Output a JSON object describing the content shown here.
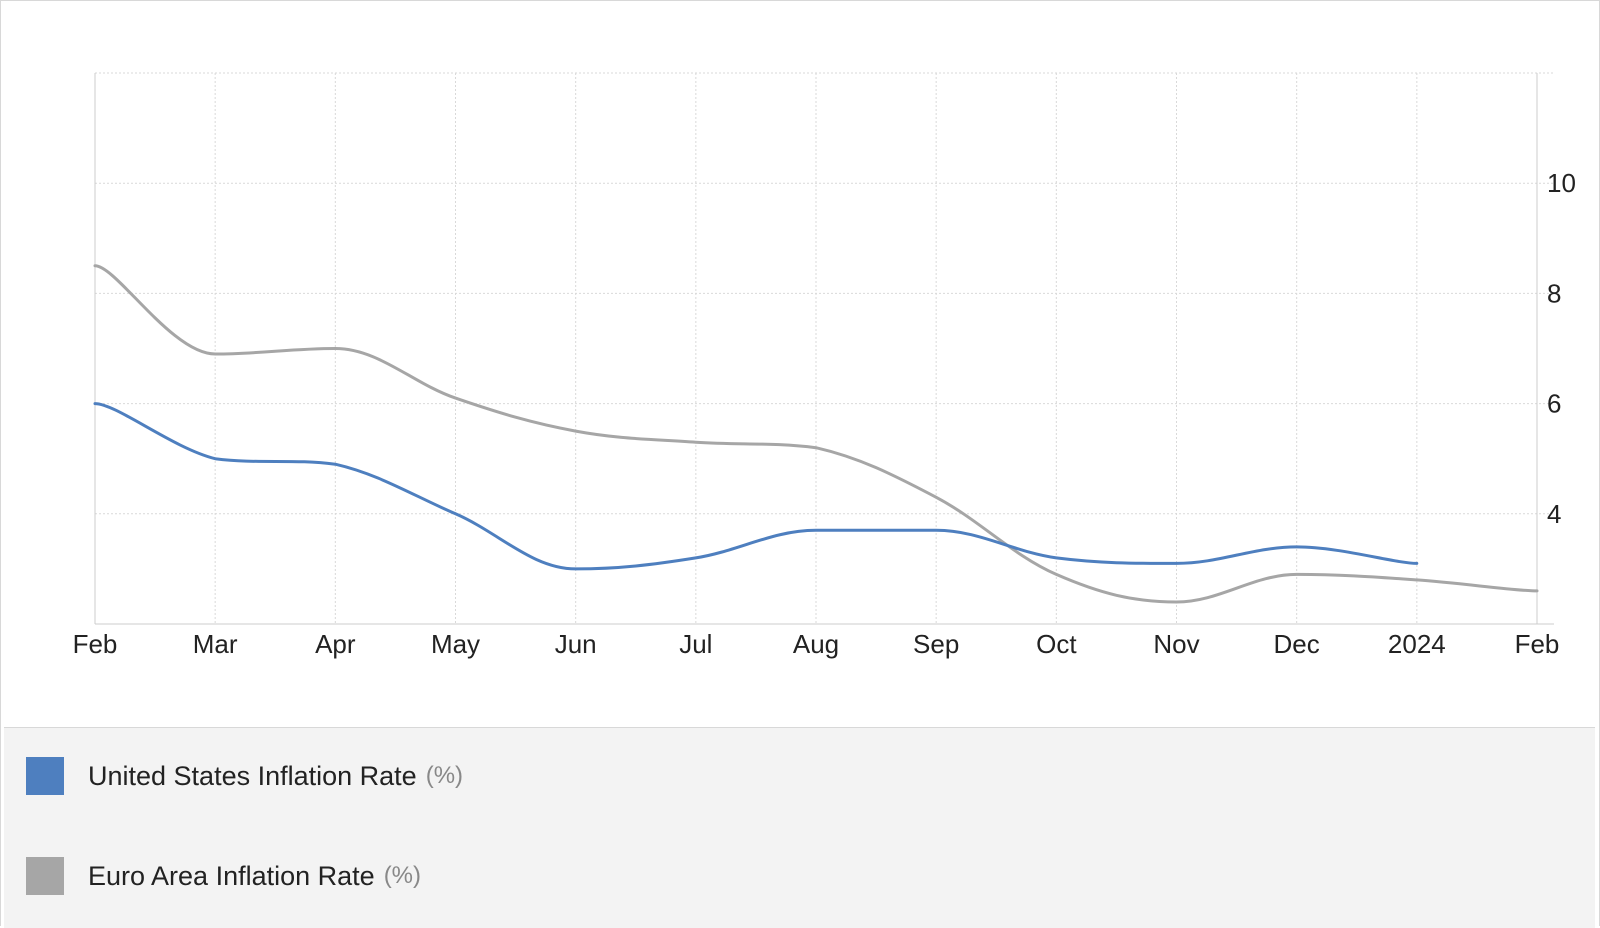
{
  "colors": {
    "us": "#4e7fbf",
    "eu": "#a6a6a6",
    "grid": "#d9d9d9"
  },
  "legend": {
    "us_label": "United States Inflation Rate",
    "eu_label": "Euro Area Inflation Rate",
    "unit": "(%)"
  },
  "chart_data": {
    "type": "line",
    "title": "",
    "xlabel": "",
    "ylabel": "",
    "x": [
      "2023-02",
      "2023-03",
      "2023-04",
      "2023-05",
      "2023-06",
      "2023-07",
      "2023-08",
      "2023-09",
      "2023-10",
      "2023-11",
      "2023-12",
      "2024-01",
      "2024-02"
    ],
    "x_tick_labels": [
      "Feb",
      "Mar",
      "Apr",
      "May",
      "Jun",
      "Jul",
      "Aug",
      "Sep",
      "Oct",
      "Nov",
      "Dec",
      "2024",
      "Feb"
    ],
    "y_ticks": [
      4,
      6,
      8,
      10
    ],
    "ylim": [
      2,
      12
    ],
    "y_axis_position": "right",
    "grid": true,
    "legend_position": "bottom",
    "series": [
      {
        "name": "United States Inflation Rate",
        "unit": "(%)",
        "color": "#4e7fbf",
        "values": [
          6.0,
          5.0,
          4.9,
          4.0,
          3.0,
          3.2,
          3.7,
          3.7,
          3.2,
          3.1,
          3.4,
          3.1,
          null
        ]
      },
      {
        "name": "Euro Area Inflation Rate",
        "unit": "(%)",
        "color": "#a6a6a6",
        "values": [
          8.5,
          6.9,
          7.0,
          6.1,
          5.5,
          5.3,
          5.2,
          4.3,
          2.9,
          2.4,
          2.9,
          2.8,
          2.6
        ]
      }
    ]
  }
}
